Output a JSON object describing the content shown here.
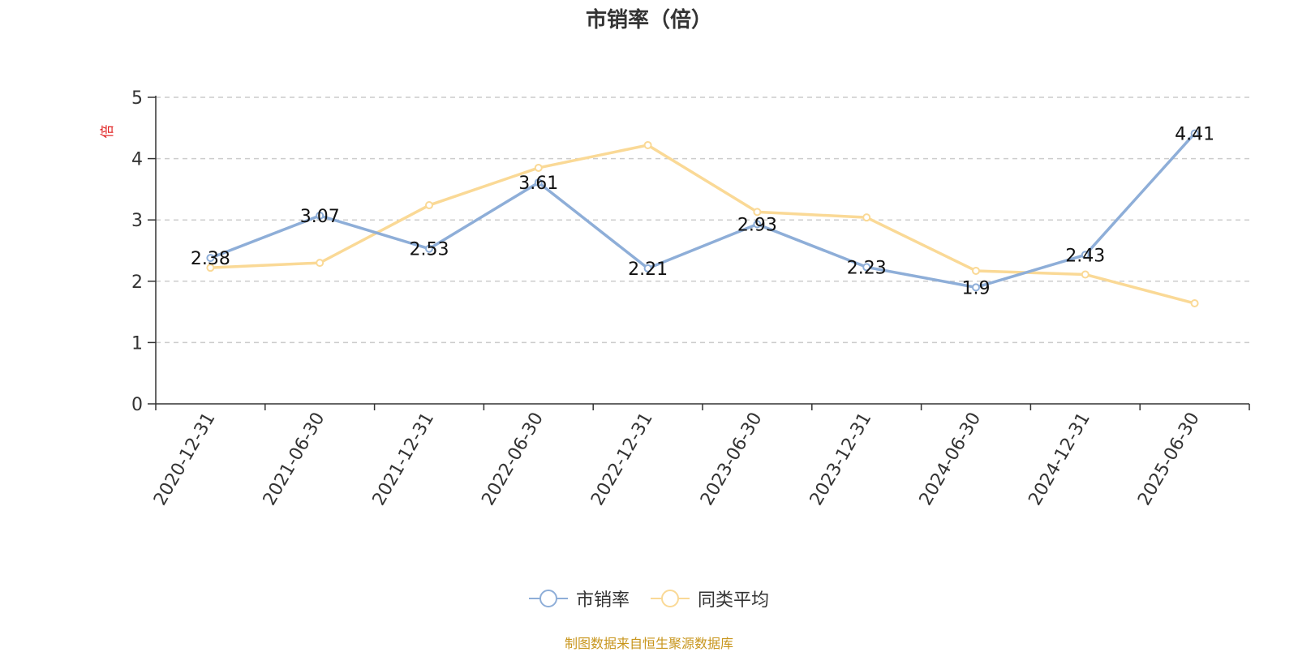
{
  "chart_data": {
    "type": "line",
    "title": "市销率（倍）",
    "ylabel": "倍",
    "xlabel": "",
    "ylim": [
      0,
      5
    ],
    "yticks": [
      0,
      1,
      2,
      3,
      4,
      5
    ],
    "grid": true,
    "legend_position": "bottom",
    "categories": [
      "2020-12-31",
      "2021-06-30",
      "2021-12-31",
      "2022-06-30",
      "2022-12-31",
      "2023-06-30",
      "2023-12-31",
      "2024-06-30",
      "2024-12-31",
      "2025-06-30"
    ],
    "series": [
      {
        "name": "市销率",
        "color": "#8eaed8",
        "values": [
          2.38,
          3.07,
          2.53,
          3.61,
          2.21,
          2.93,
          2.23,
          1.9,
          2.43,
          4.41
        ],
        "data_labels": [
          "2.38",
          "3.07",
          "2.53",
          "3.61",
          "2.21",
          "2.93",
          "2.23",
          "1.9",
          "2.43",
          "4.41"
        ]
      },
      {
        "name": "同类平均",
        "color": "#fad996",
        "values": [
          2.22,
          2.3,
          3.24,
          3.85,
          4.22,
          3.13,
          3.04,
          2.17,
          2.11,
          1.64
        ]
      }
    ],
    "ylabel_color": "#e02020"
  },
  "footer": {
    "source": "制图数据来自恒生聚源数据库",
    "source_color": "#c8961e"
  }
}
